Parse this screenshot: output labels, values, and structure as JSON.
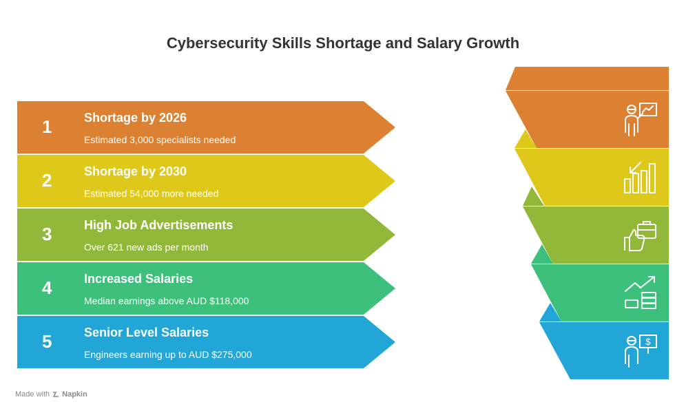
{
  "title": "Cybersecurity Skills Shortage and Salary Growth",
  "colors": {
    "orange": "#DC8132",
    "yellow": "#DEC81A",
    "olive": "#92B83A",
    "green": "#3DC07C",
    "blue": "#22A6D8"
  },
  "items": [
    {
      "number": "1",
      "heading": "Shortage by 2026",
      "description": "Estimated 3,000 specialists needed",
      "icon": "presenter-chart-icon"
    },
    {
      "number": "2",
      "heading": "Shortage by 2030",
      "description": "Estimated 54,000 more needed",
      "icon": "declining-bars-icon"
    },
    {
      "number": "3",
      "heading": "High Job Advertisements",
      "description": "Over 621 new ads per month",
      "icon": "briefcase-thumbs-up-icon"
    },
    {
      "number": "4",
      "heading": "Increased Salaries",
      "description": "Median earnings above AUD $118,000",
      "icon": "money-growth-icon"
    },
    {
      "number": "5",
      "heading": "Senior Level Salaries",
      "description": "Engineers earning up to AUD $275,000",
      "icon": "presenter-dollar-icon"
    }
  ],
  "footer": {
    "prefix": "Made with",
    "brand": "Napkin"
  }
}
